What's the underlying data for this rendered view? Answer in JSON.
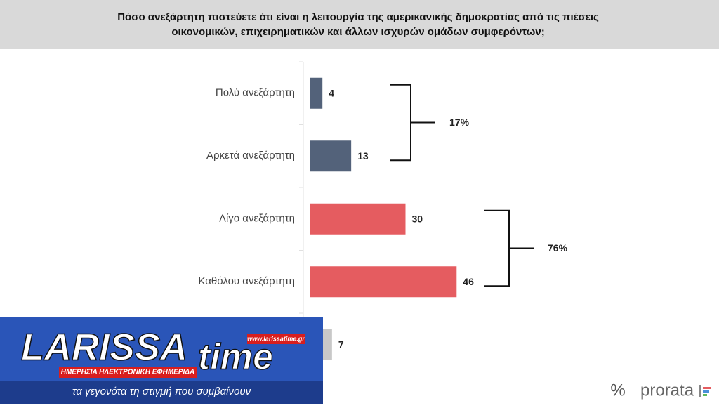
{
  "chart_data": {
    "type": "bar",
    "orientation": "horizontal",
    "title": [
      "Πόσο ανεξάρτητη πιστεύετε ότι είναι η λειτουργία της αμερικανικής δημοκρατίας από τις πιέσεις",
      "οικονομικών, επιχειρηματικών και άλλων ισχυρών ομάδων συμφερόντων;"
    ],
    "categories": [
      "Πολύ ανεξάρτητη",
      "Αρκετά ανεξάρτητη",
      "Λίγο ανεξάρτητη",
      "Καθόλου ανεξάρτητη",
      null
    ],
    "values": [
      4,
      13,
      30,
      46,
      7
    ],
    "colors": [
      "#53627a",
      "#53627a",
      "#e55c60",
      "#e55c60",
      "#c8c8c8"
    ],
    "groups": [
      {
        "label": "17%"
      },
      {
        "label": "76%"
      }
    ]
  },
  "overlay": {
    "brand_left": "LARISSA",
    "brand_right": "time",
    "url": "www.larissatime.gr",
    "tagline_top": "ΗΜΕΡΗΣΙΑ ΗΛΕΚΤΡΟΝΙΚΗ ΕΦΗΜΕΡΙΔΑ",
    "tagline": "τα γεγονότα τη στιγμή που συμβαίνουν"
  },
  "footer": {
    "symbol": "%",
    "brand": "prorata"
  }
}
